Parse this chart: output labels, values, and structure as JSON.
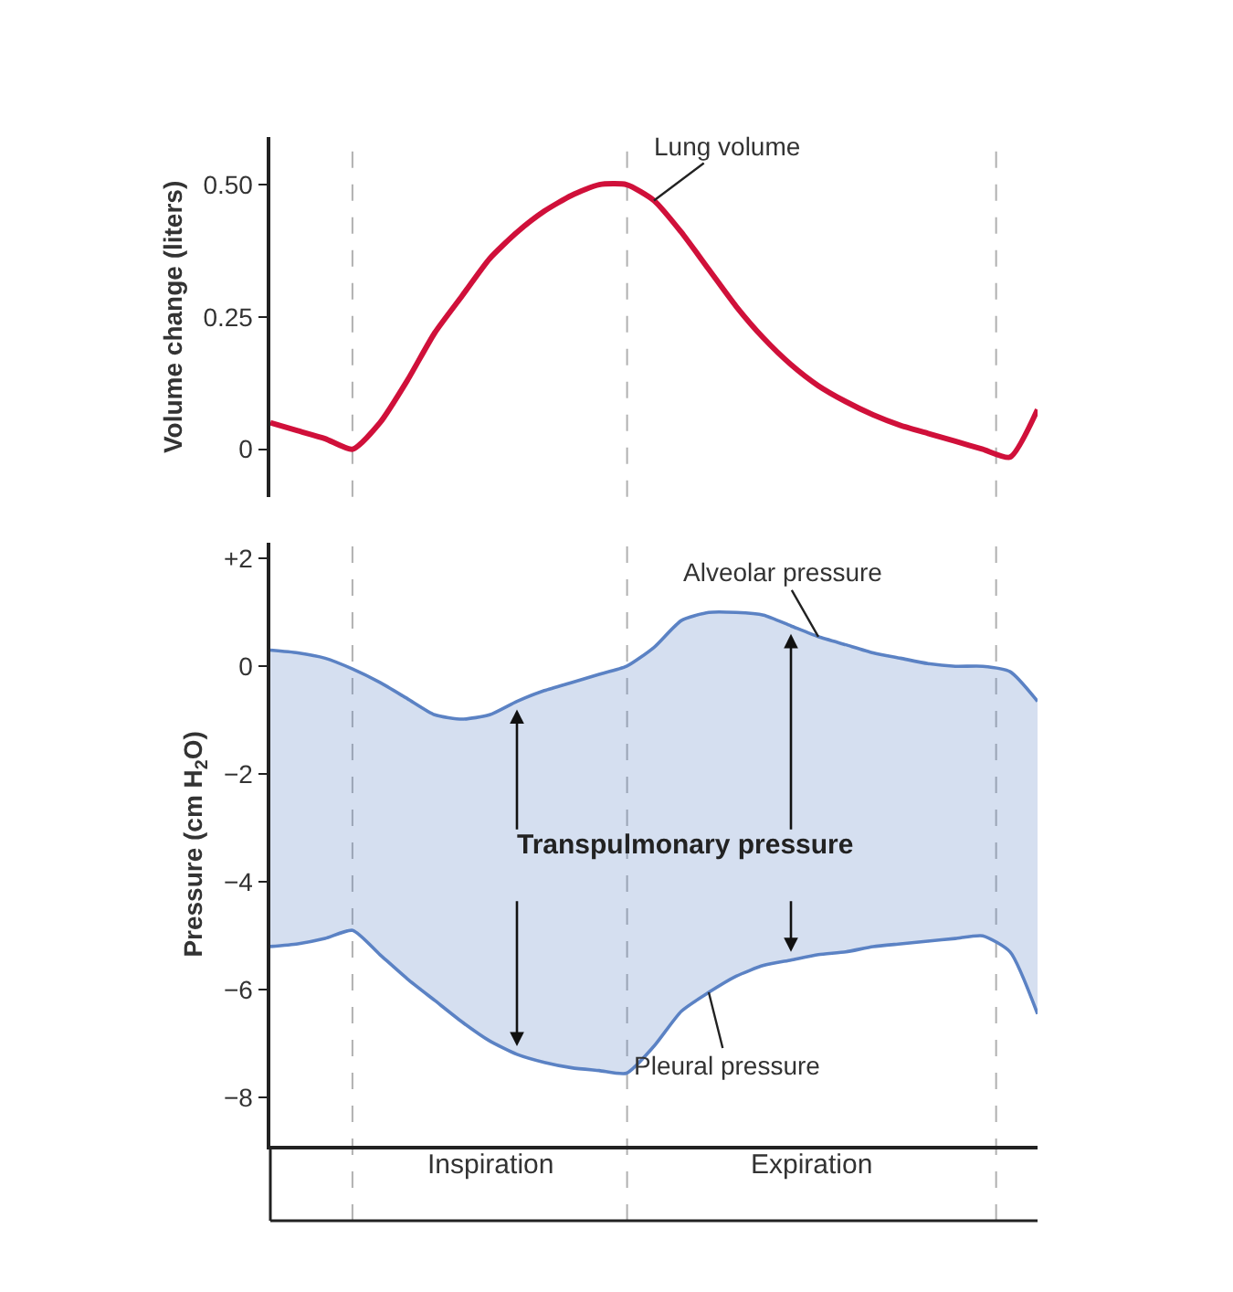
{
  "chart_data": [
    {
      "type": "line",
      "ylabel": "Volume change (liters)",
      "categories": [
        null,
        null,
        null,
        null,
        null,
        null,
        null,
        null,
        null,
        null,
        null,
        null,
        null,
        null,
        null,
        null,
        null,
        null,
        null,
        null,
        null,
        null,
        null,
        null,
        null,
        null,
        null,
        null,
        null
      ],
      "series": [
        {
          "name": "Lung volume",
          "color": "#d0103a",
          "values": [
            0.05,
            0.035,
            0.02,
            0.0,
            0.05,
            0.13,
            0.22,
            0.29,
            0.36,
            0.41,
            0.45,
            0.48,
            0.5,
            0.5,
            0.47,
            0.41,
            0.34,
            0.27,
            0.21,
            0.16,
            0.12,
            0.09,
            0.065,
            0.045,
            0.03,
            0.015,
            0.0,
            -0.015,
            0.075
          ]
        }
      ],
      "ylim": [
        -0.09,
        0.59
      ],
      "yticks": [
        0,
        {
          "value": 0.25,
          "label": "0.25"
        },
        {
          "value": 0.5,
          "label": "0.50"
        }
      ],
      "tick_labels": "y",
      "grid": false,
      "marker": "none",
      "line_style": "solid"
    },
    {
      "type": "line",
      "ylabel": "Pressure (cm H$_{2}$O)",
      "categories": [
        null,
        null,
        null,
        null,
        null,
        null,
        null,
        null,
        null,
        null,
        null,
        null,
        null,
        null,
        null,
        null,
        null,
        null,
        null,
        null,
        null,
        null,
        null,
        null,
        null,
        null,
        null,
        null,
        null
      ],
      "series": [
        {
          "name": "Pleural pressure",
          "type": "line",
          "color": "#5b82c4",
          "values": [
            -5.2,
            -5.15,
            -5.05,
            -4.9,
            -5.35,
            -5.8,
            -6.2,
            -6.6,
            -6.95,
            -7.2,
            -7.35,
            -7.45,
            -7.5,
            -7.55,
            -7.05,
            -6.4,
            -6.05,
            -5.75,
            -5.55,
            -5.45,
            -5.35,
            -5.3,
            -5.2,
            -5.15,
            -5.1,
            -5.05,
            -5.0,
            -5.3,
            -6.45
          ]
        },
        {
          "name": "Alveolar pressure",
          "type": "line",
          "color": "#5b82c4",
          "values": [
            0.3,
            0.25,
            0.15,
            -0.05,
            -0.3,
            -0.6,
            -0.9,
            -0.98,
            -0.9,
            -0.65,
            -0.45,
            -0.3,
            -0.15,
            0.0,
            0.35,
            0.85,
            1.0,
            1.0,
            0.95,
            0.75,
            0.55,
            0.4,
            0.25,
            0.15,
            0.05,
            0.0,
            0.0,
            -0.1,
            -0.65
          ],
          "lower": [
            -5.2,
            -5.15,
            -5.05,
            -4.9,
            -5.35,
            -5.8,
            -6.2,
            -6.6,
            -6.95,
            -7.2,
            -7.35,
            -7.45,
            -7.5,
            -7.55,
            -7.05,
            -6.4,
            -6.05,
            -5.75,
            -5.55,
            -5.45,
            -5.35,
            -5.3,
            -5.2,
            -5.15,
            -5.1,
            -5.05,
            -5.0,
            -5.3,
            -6.45
          ],
          "upper": [
            0.3,
            0.25,
            0.15,
            -0.05,
            -0.3,
            -0.6,
            -0.9,
            -0.98,
            -0.9,
            -0.65,
            -0.45,
            -0.3,
            -0.15,
            0.0,
            0.35,
            0.85,
            1.0,
            1.0,
            0.95,
            0.75,
            0.55,
            0.4,
            0.25,
            0.15,
            0.05,
            0.0,
            0.0,
            -0.1,
            -0.65
          ]
        }
      ],
      "ylim": [
        -8.9,
        2.3
      ],
      "yticks": [
        {
          "value": 2,
          "label": "+2"
        },
        0,
        {
          "value": -2,
          "label": "−2"
        },
        {
          "value": -4,
          "label": "−4"
        },
        {
          "value": -6,
          "label": "−6"
        },
        {
          "value": -8,
          "label": "−8"
        }
      ],
      "annotations": [
        "Transpulmonary pressure",
        "Inspiration",
        "Expiration"
      ],
      "tick_labels": "y",
      "grid": false,
      "marker": "none",
      "line_style": "solid"
    }
  ]
}
